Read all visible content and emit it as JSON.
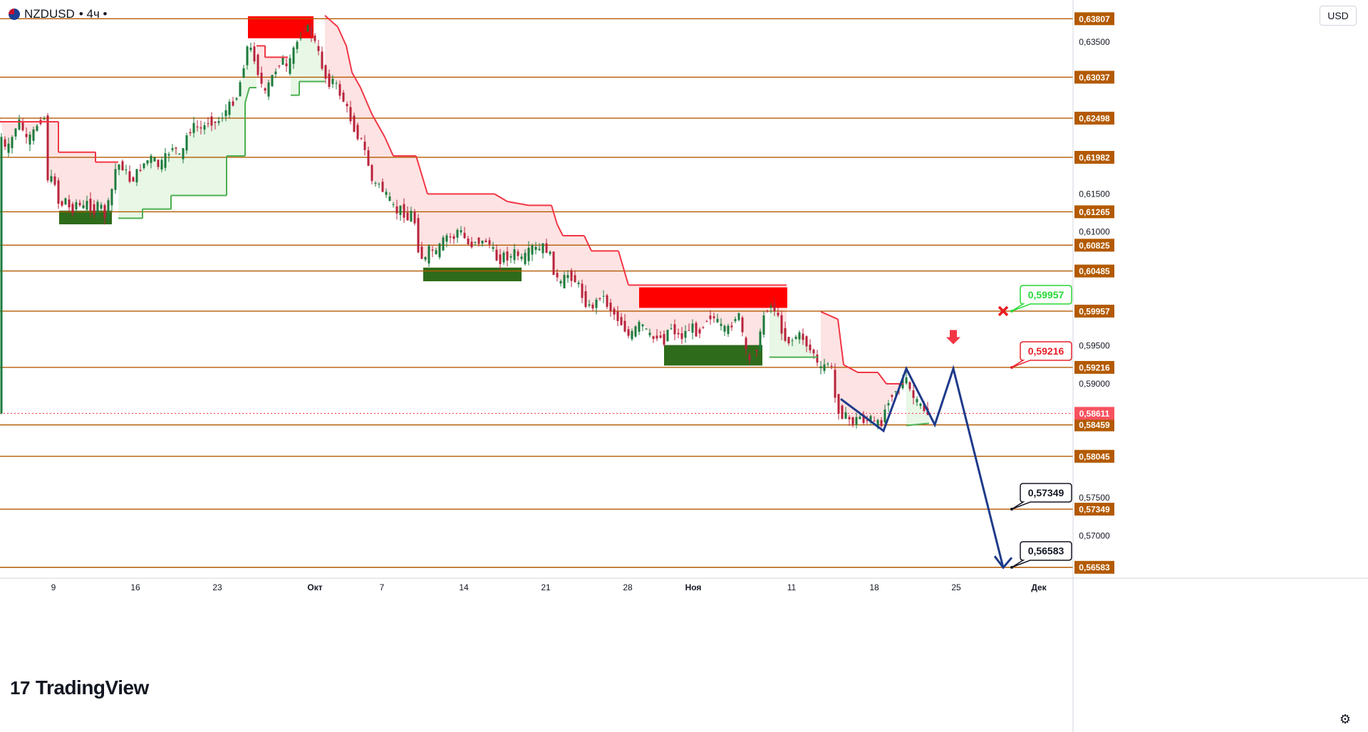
{
  "header": {
    "symbol": "NZDUSD",
    "interval_label": "• 4ч •",
    "currency_button": "USD"
  },
  "branding": {
    "logo_mark": "17",
    "logo_text": "TradingView"
  },
  "icons": {
    "flag": "nz-flag-icon",
    "settings": "gear-icon",
    "cross": "cross-icon",
    "arrow": "arrow-down-icon"
  },
  "colors": {
    "level_line": "#b35a00",
    "bull_fill": "#e8f7e6",
    "bear_fill": "#fde3e3",
    "bull_stop": "#4caf50",
    "bear_stop": "#f23645",
    "zone_green": "#2e6b1a",
    "zone_red": "#ff0000",
    "forecast": "#1e3a8a"
  },
  "chart_data": {
    "type": "candlestick",
    "ylim": [
      0.5644,
      0.6396
    ],
    "x_ticks": [
      "9",
      "16",
      "23",
      "Окт",
      "7",
      "14",
      "21",
      "28",
      "Ноя",
      "11",
      "18",
      "25",
      "Дек"
    ],
    "y_ticks": [
      "0,63500",
      "0,61500",
      "0,61000",
      "0,59500",
      "0,59000",
      "0,57500",
      "0,57000"
    ],
    "y_tick_values": [
      0.635,
      0.615,
      0.61,
      0.595,
      0.59,
      0.575,
      0.57
    ],
    "levels": [
      {
        "value": 0.63807,
        "label": "0,63807"
      },
      {
        "value": 0.63037,
        "label": "0,63037"
      },
      {
        "value": 0.62498,
        "label": "0,62498"
      },
      {
        "value": 0.61982,
        "label": "0,61982"
      },
      {
        "value": 0.61265,
        "label": "0,61265"
      },
      {
        "value": 0.60825,
        "label": "0,60825"
      },
      {
        "value": 0.60485,
        "label": "0,60485"
      },
      {
        "value": 0.59957,
        "label": "0,59957"
      },
      {
        "value": 0.59216,
        "label": "0,59216"
      },
      {
        "value": 0.58459,
        "label": "0,58459"
      },
      {
        "value": 0.58045,
        "label": "0,58045"
      },
      {
        "value": 0.57349,
        "label": "0,57349"
      },
      {
        "value": 0.56583,
        "label": "0,56583"
      }
    ],
    "current_price": {
      "value": 0.58611,
      "label": "0,58611"
    },
    "callouts": [
      {
        "label": "0,59957",
        "value": 0.59957,
        "style": "green"
      },
      {
        "label": "0,59216",
        "value": 0.59216,
        "style": "red"
      },
      {
        "label": "0,57349",
        "value": 0.57349,
        "style": "black"
      },
      {
        "label": "0,56583",
        "value": 0.56583,
        "style": "black"
      }
    ],
    "price_path": [
      [
        0,
        0.6255
      ],
      [
        6,
        0.6215
      ],
      [
        12,
        0.6205
      ],
      [
        20,
        0.6225
      ],
      [
        28,
        0.6248
      ],
      [
        34,
        0.6236
      ],
      [
        40,
        0.6218
      ],
      [
        48,
        0.6228
      ],
      [
        56,
        0.6245
      ],
      [
        62,
        0.625
      ],
      [
        66,
        0.625
      ],
      [
        70,
        0.616
      ],
      [
        78,
        0.6175
      ],
      [
        86,
        0.613
      ],
      [
        94,
        0.6145
      ],
      [
        102,
        0.6125
      ],
      [
        110,
        0.614
      ],
      [
        118,
        0.613
      ],
      [
        126,
        0.614
      ],
      [
        134,
        0.6125
      ],
      [
        142,
        0.6138
      ],
      [
        150,
        0.612
      ],
      [
        158,
        0.6148
      ],
      [
        166,
        0.619
      ],
      [
        176,
        0.6185
      ],
      [
        186,
        0.6165
      ],
      [
        196,
        0.618
      ],
      [
        206,
        0.6192
      ],
      [
        216,
        0.6198
      ],
      [
        226,
        0.6185
      ],
      [
        236,
        0.62
      ],
      [
        246,
        0.6215
      ],
      [
        256,
        0.6195
      ],
      [
        266,
        0.6232
      ],
      [
        276,
        0.624
      ],
      [
        286,
        0.6235
      ],
      [
        296,
        0.6248
      ],
      [
        306,
        0.6242
      ],
      [
        316,
        0.6255
      ],
      [
        326,
        0.6268
      ],
      [
        336,
        0.628
      ],
      [
        342,
        0.631
      ],
      [
        350,
        0.6345
      ],
      [
        358,
        0.6335
      ],
      [
        366,
        0.6305
      ],
      [
        374,
        0.628
      ],
      [
        382,
        0.63
      ],
      [
        390,
        0.6315
      ],
      [
        398,
        0.633
      ],
      [
        406,
        0.631
      ],
      [
        414,
        0.634
      ],
      [
        422,
        0.6355
      ],
      [
        430,
        0.637
      ],
      [
        438,
        0.6365
      ],
      [
        446,
        0.6345
      ],
      [
        454,
        0.632
      ],
      [
        462,
        0.6295
      ],
      [
        470,
        0.63
      ],
      [
        478,
        0.6285
      ],
      [
        486,
        0.627
      ],
      [
        494,
        0.625
      ],
      [
        502,
        0.623
      ],
      [
        510,
        0.622
      ],
      [
        518,
        0.6195
      ],
      [
        526,
        0.616
      ],
      [
        534,
        0.6165
      ],
      [
        542,
        0.615
      ],
      [
        550,
        0.614
      ],
      [
        558,
        0.6125
      ],
      [
        566,
        0.6132
      ],
      [
        574,
        0.6115
      ],
      [
        582,
        0.613
      ],
      [
        590,
        0.6075
      ],
      [
        598,
        0.606
      ],
      [
        606,
        0.608
      ],
      [
        614,
        0.607
      ],
      [
        622,
        0.6085
      ],
      [
        630,
        0.6095
      ],
      [
        638,
        0.609
      ],
      [
        646,
        0.6105
      ],
      [
        654,
        0.6092
      ],
      [
        662,
        0.608
      ],
      [
        670,
        0.609
      ],
      [
        678,
        0.6085
      ],
      [
        686,
        0.609
      ],
      [
        694,
        0.6075
      ],
      [
        702,
        0.606
      ],
      [
        710,
        0.607
      ],
      [
        718,
        0.6065
      ],
      [
        726,
        0.6075
      ],
      [
        734,
        0.6062
      ],
      [
        742,
        0.607
      ],
      [
        750,
        0.608
      ],
      [
        758,
        0.6075
      ],
      [
        766,
        0.6082
      ],
      [
        774,
        0.607
      ],
      [
        782,
        0.604
      ],
      [
        790,
        0.603
      ],
      [
        798,
        0.6045
      ],
      [
        806,
        0.604
      ],
      [
        814,
        0.603
      ],
      [
        822,
        0.601
      ],
      [
        830,
        0.6
      ],
      [
        838,
        0.6005
      ],
      [
        846,
        0.602
      ],
      [
        854,
        0.6005
      ],
      [
        862,
        0.5995
      ],
      [
        870,
        0.5985
      ],
      [
        878,
        0.5975
      ],
      [
        886,
        0.596
      ],
      [
        894,
        0.5972
      ],
      [
        902,
        0.598
      ],
      [
        910,
        0.5968
      ],
      [
        918,
        0.5958
      ],
      [
        926,
        0.5965
      ],
      [
        934,
        0.5955
      ],
      [
        942,
        0.5978
      ],
      [
        950,
        0.5968
      ],
      [
        958,
        0.596
      ],
      [
        966,
        0.597
      ],
      [
        974,
        0.5975
      ],
      [
        982,
        0.5965
      ],
      [
        990,
        0.598
      ],
      [
        998,
        0.599
      ],
      [
        1006,
        0.5985
      ],
      [
        1014,
        0.5975
      ],
      [
        1022,
        0.5968
      ],
      [
        1030,
        0.598
      ],
      [
        1038,
        0.5995
      ],
      [
        1046,
        0.596
      ],
      [
        1052,
        0.5925
      ],
      [
        1060,
        0.594
      ],
      [
        1068,
        0.5955
      ],
      [
        1074,
        0.599
      ],
      [
        1082,
        0.6005
      ],
      [
        1090,
        0.5998
      ],
      [
        1098,
        0.5975
      ],
      [
        1106,
        0.5955
      ],
      [
        1114,
        0.5958
      ],
      [
        1122,
        0.5965
      ],
      [
        1130,
        0.596
      ],
      [
        1138,
        0.5945
      ],
      [
        1146,
        0.594
      ],
      [
        1152,
        0.5915
      ],
      [
        1160,
        0.5925
      ],
      [
        1168,
        0.593
      ],
      [
        1176,
        0.587
      ],
      [
        1184,
        0.586
      ],
      [
        1192,
        0.5855
      ],
      [
        1200,
        0.5848
      ],
      [
        1208,
        0.5858
      ],
      [
        1216,
        0.585
      ],
      [
        1224,
        0.5855
      ],
      [
        1232,
        0.5845
      ],
      [
        1240,
        0.585
      ],
      [
        1248,
        0.5878
      ],
      [
        1256,
        0.589
      ],
      [
        1264,
        0.5895
      ],
      [
        1272,
        0.591
      ],
      [
        1280,
        0.589
      ],
      [
        1288,
        0.5875
      ],
      [
        1296,
        0.587
      ],
      [
        1304,
        0.5861
      ]
    ],
    "stop_line": [
      [
        0,
        0.6245,
        "bear"
      ],
      [
        82,
        0.6245,
        "bear"
      ],
      [
        82,
        0.6205,
        "bear"
      ],
      [
        134,
        0.6205,
        "bear"
      ],
      [
        134,
        0.6192,
        "bear"
      ],
      [
        166,
        0.6192,
        "bear"
      ],
      [
        166,
        0.6118,
        "bull"
      ],
      [
        200,
        0.6118,
        "bull"
      ],
      [
        200,
        0.613,
        "bull"
      ],
      [
        240,
        0.613,
        "bull"
      ],
      [
        240,
        0.6148,
        "bull"
      ],
      [
        318,
        0.6148,
        "bull"
      ],
      [
        318,
        0.62,
        "bull"
      ],
      [
        344,
        0.62,
        "bull"
      ],
      [
        344,
        0.627,
        "bull"
      ],
      [
        350,
        0.629,
        "bull"
      ],
      [
        360,
        0.629,
        "bull"
      ],
      [
        360,
        0.6345,
        "bear"
      ],
      [
        372,
        0.6345,
        "bear"
      ],
      [
        372,
        0.633,
        "bear"
      ],
      [
        404,
        0.633,
        "bear"
      ],
      [
        408,
        0.628,
        "bull"
      ],
      [
        420,
        0.628,
        "bull"
      ],
      [
        420,
        0.6298,
        "bull"
      ],
      [
        456,
        0.6298,
        "bull"
      ],
      [
        456,
        0.6385,
        "bear"
      ],
      [
        474,
        0.637,
        "bear"
      ],
      [
        486,
        0.6345,
        "bear"
      ],
      [
        494,
        0.631,
        "bear"
      ],
      [
        506,
        0.629,
        "bear"
      ],
      [
        522,
        0.6255,
        "bear"
      ],
      [
        540,
        0.6225,
        "bear"
      ],
      [
        552,
        0.62,
        "bear"
      ],
      [
        584,
        0.62,
        "bear"
      ],
      [
        600,
        0.615,
        "bear"
      ],
      [
        694,
        0.615,
        "bear"
      ],
      [
        712,
        0.614,
        "bear"
      ],
      [
        742,
        0.6135,
        "bear"
      ],
      [
        774,
        0.6135,
        "bear"
      ],
      [
        782,
        0.611,
        "bear"
      ],
      [
        790,
        0.6095,
        "bear"
      ],
      [
        820,
        0.6095,
        "bear"
      ],
      [
        830,
        0.6075,
        "bear"
      ],
      [
        868,
        0.6075,
        "bear"
      ],
      [
        882,
        0.603,
        "bear"
      ],
      [
        1104,
        0.603,
        "bear"
      ],
      [
        1080,
        0.5935,
        "bull"
      ],
      [
        1148,
        0.5935,
        "bull"
      ],
      [
        1152,
        0.5995,
        "bear"
      ],
      [
        1176,
        0.5985,
        "bear"
      ],
      [
        1184,
        0.5925,
        "bear"
      ],
      [
        1204,
        0.5915,
        "bear"
      ],
      [
        1232,
        0.5915,
        "bear"
      ],
      [
        1244,
        0.59,
        "bear"
      ],
      [
        1268,
        0.59,
        "bear"
      ],
      [
        1272,
        0.5845,
        "bull"
      ],
      [
        1304,
        0.5848,
        "bull"
      ]
    ],
    "zones": [
      {
        "x0": 83,
        "x1": 157,
        "y0": 0.611,
        "y1": 0.6128,
        "kind": "green"
      },
      {
        "x0": 348,
        "x1": 440,
        "y0": 0.6355,
        "y1": 0.6384,
        "kind": "red"
      },
      {
        "x0": 594,
        "x1": 732,
        "y0": 0.6035,
        "y1": 0.6053,
        "kind": "green"
      },
      {
        "x0": 897,
        "x1": 1105,
        "y0": 0.6,
        "y1": 0.6027,
        "kind": "red"
      },
      {
        "x0": 932,
        "x1": 1070,
        "y0": 0.5924,
        "y1": 0.5951,
        "kind": "green"
      }
    ],
    "forecast_path": [
      [
        1180,
        0.588
      ],
      [
        1240,
        0.5838
      ],
      [
        1272,
        0.592
      ],
      [
        1312,
        0.5846
      ],
      [
        1338,
        0.592
      ],
      [
        1408,
        0.5658
      ]
    ]
  }
}
